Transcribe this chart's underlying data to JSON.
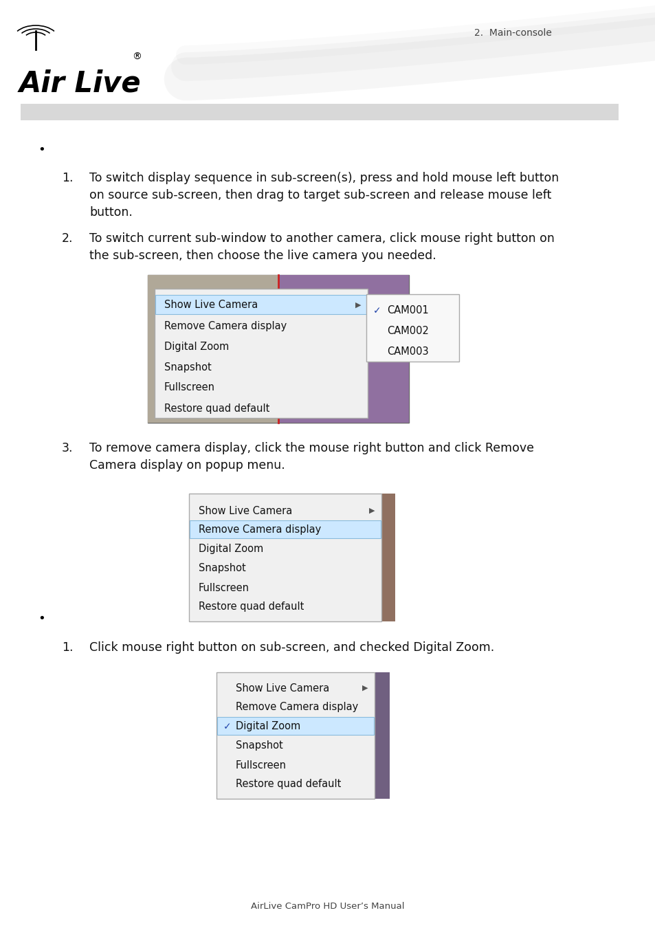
{
  "page_bg": "#ffffff",
  "header_text": "2.  Main-console",
  "footer_text": "AirLive CamPro HD User’s Manual",
  "section1_bullet": "•",
  "section2_bullet": "•",
  "item1_num": "1.",
  "item1_line1": "To switch display sequence in sub-screen(s), press and hold mouse left button",
  "item1_line2": "on source sub-screen, then drag to target sub-screen and release mouse left",
  "item1_line3": "button.",
  "item2_num": "2.",
  "item2_line1": "To switch current sub-window to another camera, click mouse right button on",
  "item2_line2": "the sub-screen, then choose the live camera you needed.",
  "item3_num": "3.",
  "item3_line1": "To remove camera display, click the mouse right button and click Remove",
  "item3_line2": "Camera display on popup menu.",
  "item4_num": "1.",
  "item4_line1": "Click mouse right button on sub-screen, and checked Digital Zoom.",
  "menu_items": [
    "Show Live Camera",
    "Remove Camera display",
    "Digital Zoom",
    "Snapshot",
    "Fullscreen",
    "Restore quad default"
  ],
  "submenu_items": [
    "CAM001",
    "CAM002",
    "CAM003"
  ],
  "font_size_body": 12.5,
  "font_size_header": 10,
  "font_size_menu": 10.5,
  "font_size_num": 12.5,
  "menu_bg": "#f0f0f0",
  "menu_hl_bg": "#cce8ff",
  "menu_hl_border": "#88bbdd",
  "menu_border": "#aaaaaa",
  "submenu_bg": "#f8f8f8",
  "check_color": "#2244aa",
  "text_color": "#111111"
}
